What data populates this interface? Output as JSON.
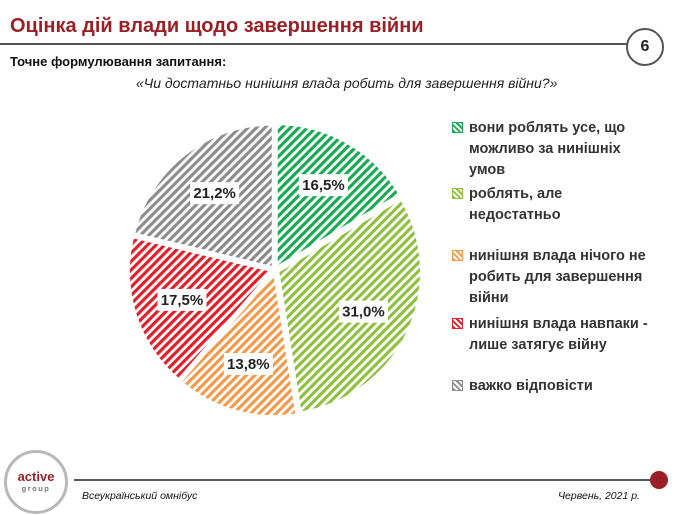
{
  "header": {
    "title": "Оцінка дій влади щодо завершення війни",
    "page_number": "6"
  },
  "question": {
    "label": "Точне формулювання запитання:",
    "text": "«Чи достатньо нинішня влада робить для завершення війни?»"
  },
  "footer": {
    "logo_main": "active",
    "logo_sub": "group",
    "left": "Всеукраїнський омнібус",
    "right": "Червень, 2021 р."
  },
  "colors": {
    "brand": "#9b1f24",
    "green": "#1aaa55",
    "lightgreen": "#8fbf3f",
    "orange": "#f39a4a",
    "red": "#e0202a",
    "gray": "#8c8c8c"
  },
  "chart_data": {
    "type": "pie",
    "series": [
      {
        "name": "вони роблять усе, що можливо за нинішніх умов",
        "value": 16.5,
        "label": "16,5%",
        "color": "#1aaa55"
      },
      {
        "name": "роблять, але недостатньо",
        "value": 31.0,
        "label": "31,0%",
        "color": "#8fbf3f"
      },
      {
        "name": "нинішня влада нічого не робить для завершення війни",
        "value": 13.8,
        "label": "13,8%",
        "color": "#f39a4a"
      },
      {
        "name": "нинішня влада навпаки - лише затягує війну",
        "value": 17.5,
        "label": "17,5%",
        "color": "#e0202a"
      },
      {
        "name": "важко відповісти",
        "value": 21.2,
        "label": "21,2%",
        "color": "#8c8c8c"
      }
    ],
    "start_angle_deg": 0,
    "direction": "clockwise",
    "exploded": true,
    "legend_position": "right",
    "title": ""
  }
}
